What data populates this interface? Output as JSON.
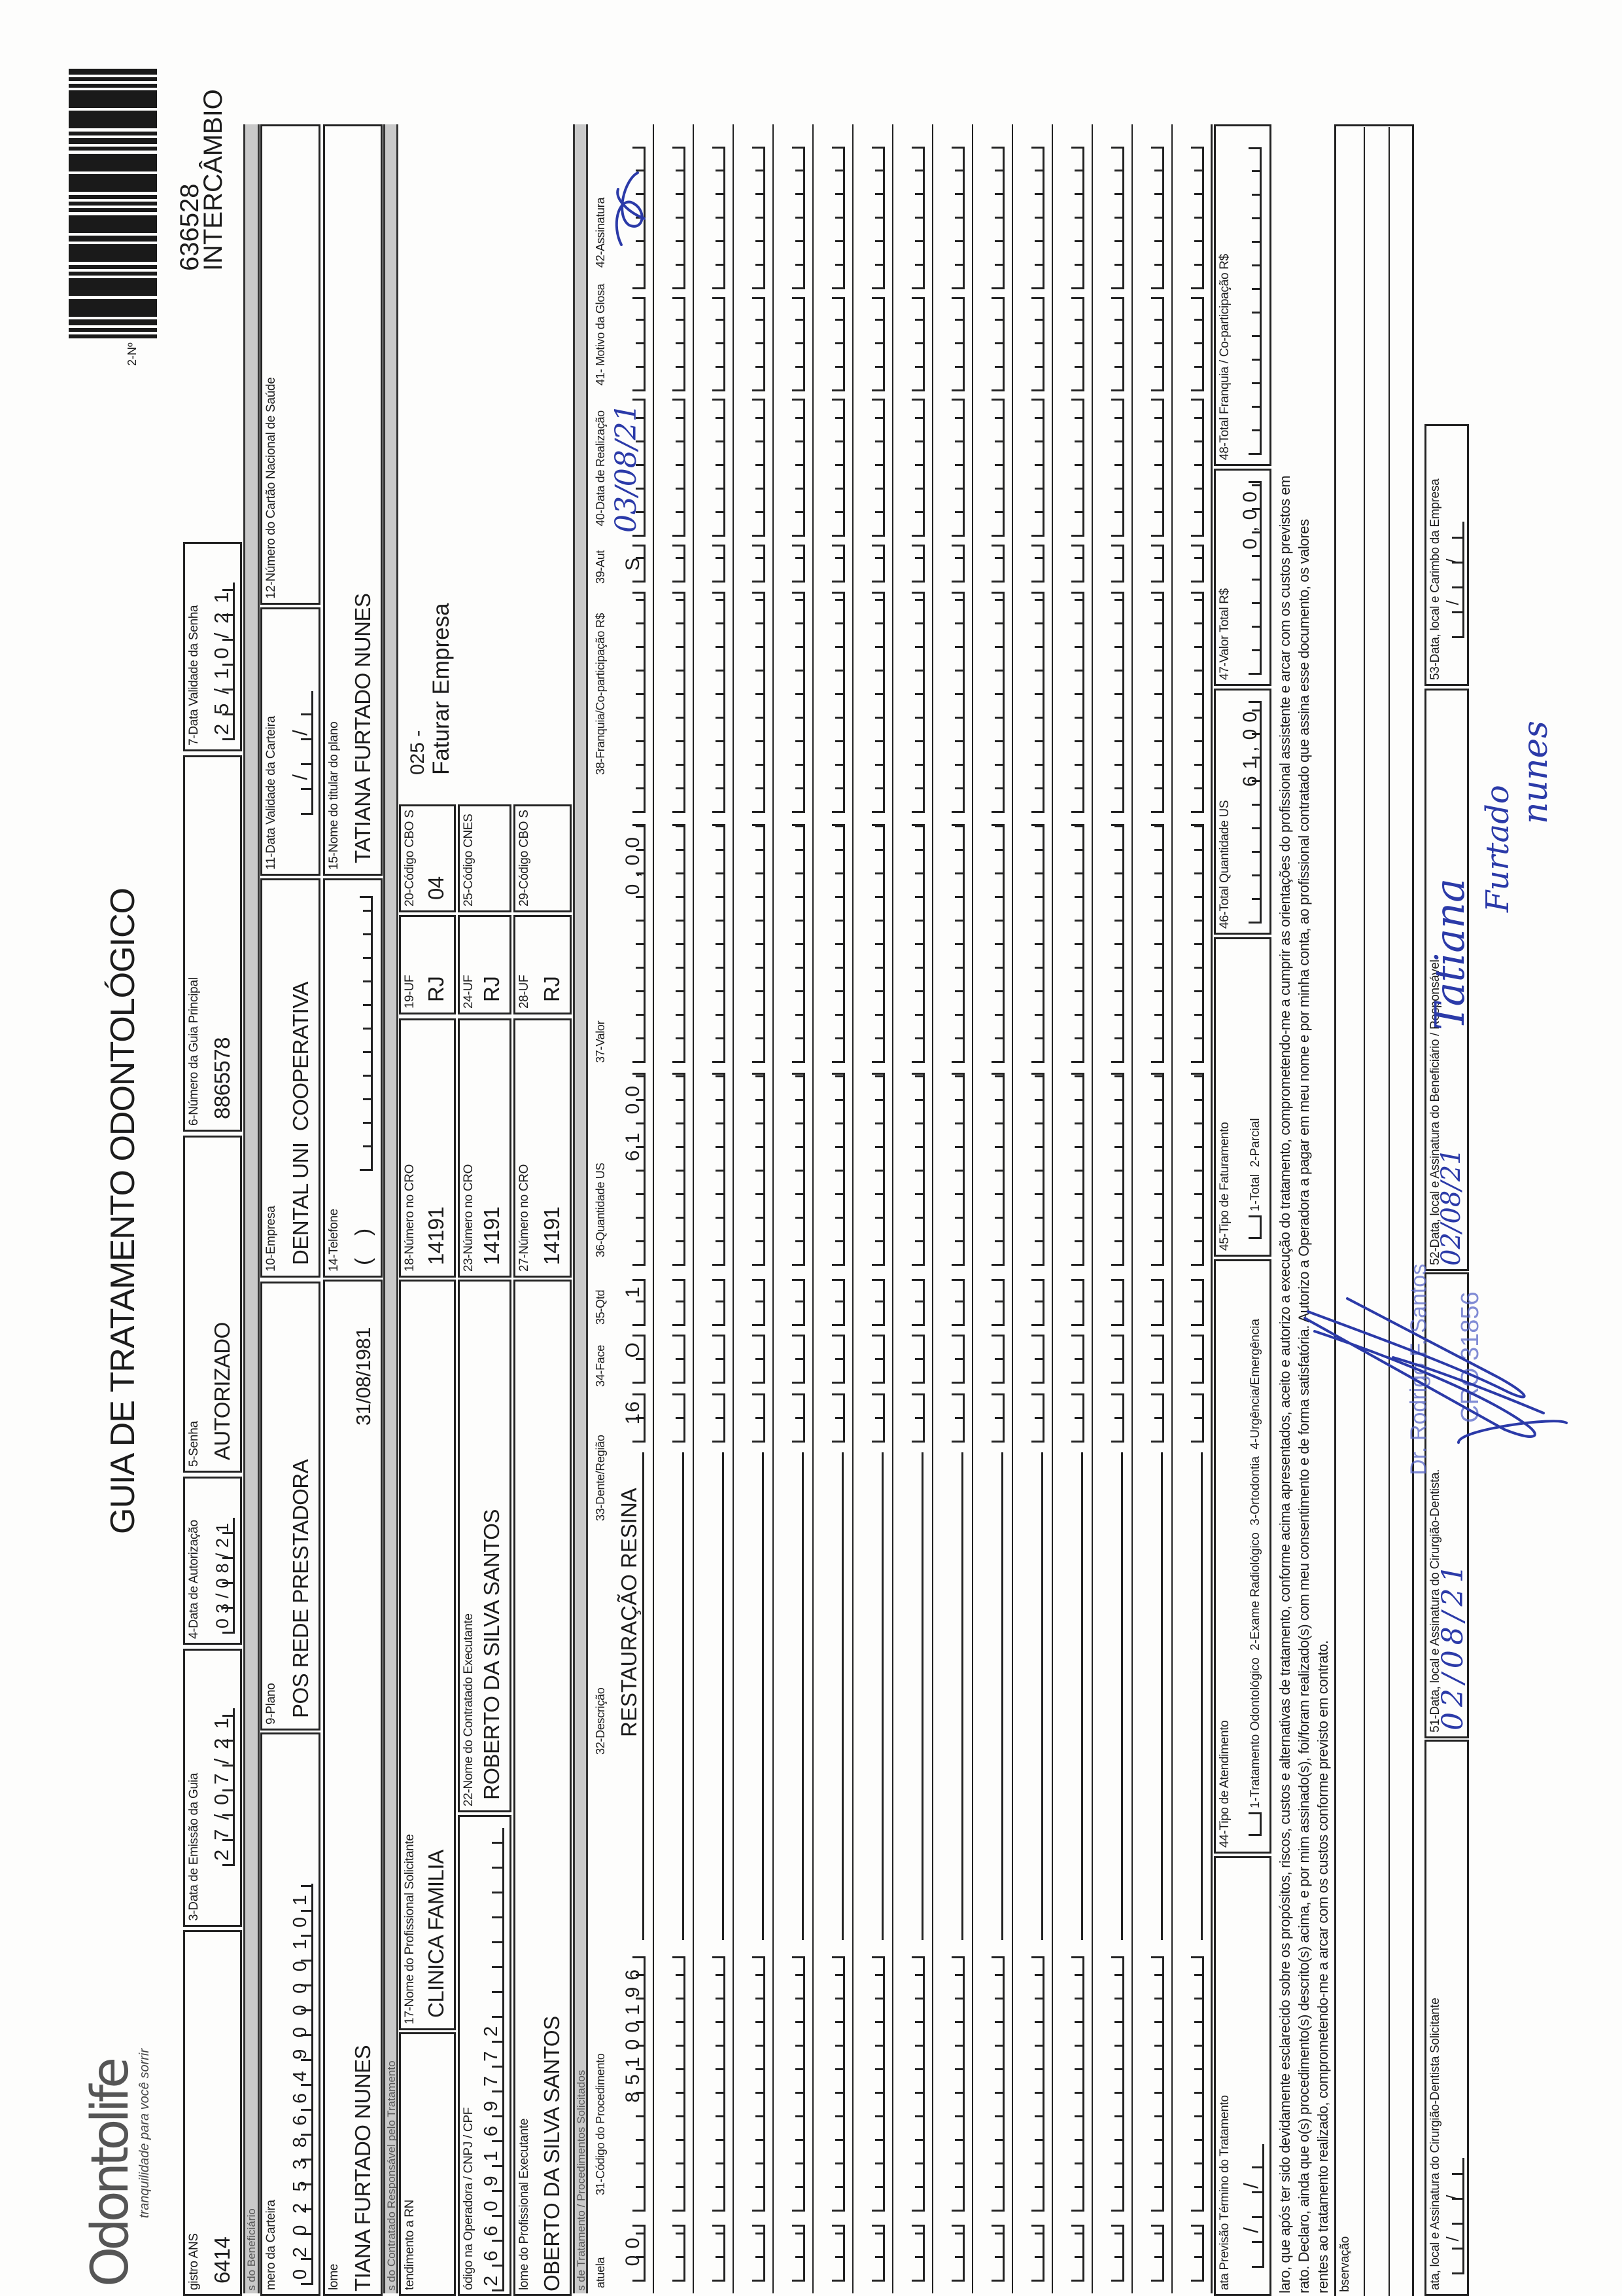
{
  "header": {
    "logo_text": "Odontolife",
    "logo_tagline": "tranquilidade para você sorrir",
    "title": "GUIA DE TRATAMENTO ODONTOLÓGICO",
    "numero_label": "2-Nº",
    "guide_number": "636528",
    "guide_type": "INTERCÂMBIO"
  },
  "row1": {
    "ans": {
      "label": "gistro ANS",
      "value": "6414"
    },
    "emissao": {
      "label": "3-Data de Emissão da Guia",
      "value": "27/07/21"
    },
    "autorizacao": {
      "label": "4-Data de Autorização",
      "value": "03/08/21"
    },
    "senha": {
      "label": "5-Senha",
      "value": "AUTORIZADO"
    },
    "guia_principal": {
      "label": "6-Número da Guia Principal",
      "value": "8865578"
    },
    "validade_senha": {
      "label": "7-Data Validade da Senha",
      "value": "25/10/21"
    }
  },
  "bands": {
    "beneficiario": "s do Beneficiário",
    "contratado": "s do Contratado Responsável pelo Tratamento",
    "tratamento": "s de Tratamento / Procedimentos Solicitados"
  },
  "beneficiario": {
    "carteira": {
      "label": "mero da Carteira",
      "value": "020253866490000101"
    },
    "plano": {
      "label": "9-Plano",
      "value": "POS REDE PRESTADORA"
    },
    "empresa": {
      "label": "10-Empresa",
      "value": "DENTAL UNI  COOPERATIVA"
    },
    "validade_carteira": {
      "label": "11-Data Validade da Carteira",
      "value": "  /  /  "
    },
    "cns": {
      "label": "12-Número do Cartão Nacional de Saúde",
      "value": ""
    },
    "nome": {
      "label": "lome",
      "value": "TIANA FURTADO NUNES"
    },
    "nascimento": "31/08/1981",
    "telefone": {
      "label": "14-Telefone",
      "value": "(    )"
    },
    "titular": {
      "label": "15-Nome do titular do plano",
      "value": "TATIANA FURTADO NUNES"
    }
  },
  "contratado": {
    "rn": {
      "label": "tendimento a RN"
    },
    "solicitante": {
      "label": "17-Nome do Profissional Solicitante",
      "value": "CLINICA FAMILIA"
    },
    "cro18": {
      "label": "18-Número no CRO",
      "value": "14191"
    },
    "uf19": {
      "label": "19-UF",
      "value": "RJ"
    },
    "cbo20": {
      "label": "20-Código CBO S",
      "value": "04"
    },
    "faturamento_code": "025 -",
    "faturamento_text": "Faturar Empresa",
    "codigo_operadora": {
      "label": "ódigo na Operadora / CNPJ / CPF",
      "value": "26609169772"
    },
    "executante_contratado": {
      "label": "22-Nome do Contratado Executante",
      "value": "ROBERTO DA SILVA SANTOS"
    },
    "cro23": {
      "label": "23-Número no CRO",
      "value": "14191"
    },
    "uf24": {
      "label": "24-UF",
      "value": "RJ"
    },
    "cnes25": {
      "label": "25-Código CNES",
      "value": ""
    },
    "profissional_executante": {
      "label": "lome do Profissional Executante",
      "value": "OBERTO DA SILVA SANTOS"
    },
    "cro27": {
      "label": "27-Número no CRO",
      "value": "14191"
    },
    "uf28": {
      "label": "28-UF",
      "value": "RJ"
    },
    "cbo29": {
      "label": "29-Código CBO S",
      "value": ""
    }
  },
  "procedures": {
    "headers": {
      "tabela": "atuela",
      "codigo": "31-Código do Procedimento",
      "descricao": "32-Descrição",
      "dente": "33-Dente/Região",
      "face": "34-Face",
      "qtd": "35-Qtd",
      "qtd_us": "36-Quantidade US",
      "valor": "37-Valor",
      "franquia": "38-Franquia/Co-participação R$",
      "aut": "39-Aut",
      "data": "40-Data de Realização",
      "glosa": "41- Motivo da Glosa",
      "assinatura": "42-Assinatura"
    },
    "rows": [
      {
        "tabela": "00",
        "codigo": "85100196",
        "descricao": "RESTAURAÇÃO RESINA",
        "dente": "16",
        "face": "O",
        "qtd": "1",
        "qtd_us": "61,00",
        "valor": "0,00",
        "franquia": "",
        "aut": "S",
        "data": "03/08/21",
        "glosa": "",
        "assinatura": ""
      }
    ]
  },
  "totals": {
    "previsao": {
      "label": "ata Previsão Término do Tratamento",
      "value": "  /  /  "
    },
    "tipo_atendimento": {
      "label": "44-Tipo de Atendimento",
      "options": "1-Tratamento Odontológico  2-Exame Radiológico  3-Ortodontia  4-Urgência/Emergência"
    },
    "tipo_faturamento": {
      "label": "45-Tipo de Faturamento",
      "options": "1-Total  2-Parcial"
    },
    "total_us": {
      "label": "46-Total Quantidade US",
      "value": "61,00"
    },
    "valor_total": {
      "label": "47-Valor Total R$",
      "value": "0,00"
    },
    "total_franquia": {
      "label": "48-Total Franquia / Co-participação R$",
      "value": ""
    }
  },
  "declaration": [
    "laro, que após ter sido devidamente esclarecido sobre os propósitos, riscos, custos e alternativas de tratamento, conforme acima apresentados, aceito e autorizo a execução do tratamento, comprometendo-me a cumprir as orientações do profissional assistente e arcar com os custos previstos em",
    "rato. Declaro, ainda que o(s) procedimento(s) descrito(s) acima, e por mim assinado(s), foi/foram realizado(s) com meu consentimento e de forma satisfatória. Autorizo a Operadora a pagar em meu nome e por minha conta, ao profissional contratado que assina esse documento, os valores",
    "rentes ao tratamento realizado, comprometendo-me a arcar com os custos conforme previsto em contrato."
  ],
  "observacao_label": "bservação",
  "signatures": {
    "solicitante": {
      "label": "ata, local e Assinatura do Cirurgião-Dentista Solicitante",
      "value": "  /  /  "
    },
    "dentista": {
      "label": "51-Data, local e Assinatura do Cirurgião-Dentista.",
      "handwritten_date": "02/08/21"
    },
    "beneficiario": {
      "label": "52-Data, local e Assinatura do Beneficiário / Responsável",
      "handwritten_date": "02/08/21",
      "handwritten_name": [
        "Tatiana",
        "Furtado",
        "nunes"
      ]
    },
    "empresa": {
      "label": "53-Data, local e Carimbo da Empresa",
      "value": "  /  /  "
    },
    "stamp_name": "Dr. Rodrigo F. Santos",
    "stamp_cro": "CRO 31856"
  },
  "colors": {
    "ink": "#1c1c1c",
    "band": "#c9c9c9",
    "pen_blue": "#2b3aa8"
  }
}
